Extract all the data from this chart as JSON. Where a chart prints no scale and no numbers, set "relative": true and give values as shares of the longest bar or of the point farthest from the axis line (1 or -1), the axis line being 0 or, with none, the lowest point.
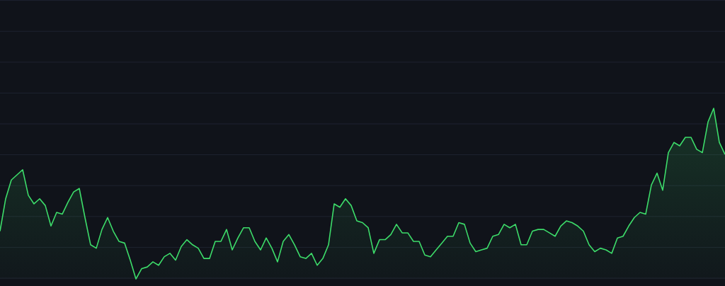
{
  "chart_data": {
    "type": "area",
    "relative": true,
    "grid": true,
    "color": "#3ddc6a",
    "categories": [
      null,
      null,
      null,
      null,
      null,
      null,
      null,
      null,
      null,
      null,
      null,
      null,
      null,
      null,
      null,
      null,
      null,
      null,
      null,
      null,
      null,
      null,
      null,
      null,
      null,
      null,
      null,
      null,
      null,
      null,
      null,
      null,
      null,
      null,
      null,
      null,
      null,
      null,
      null,
      null,
      null,
      null,
      null,
      null,
      null,
      null,
      null,
      null,
      null,
      null,
      null,
      null,
      null,
      null,
      null,
      null,
      null,
      null,
      null,
      null,
      null,
      null,
      null,
      null,
      null,
      null,
      null,
      null,
      null,
      null,
      null,
      null,
      null,
      null,
      null,
      null,
      null,
      null,
      null,
      null,
      null,
      null,
      null,
      null,
      null,
      null,
      null,
      null,
      null,
      null,
      null,
      null,
      null,
      null,
      null,
      null,
      null,
      null,
      null,
      null,
      null,
      null,
      null,
      null,
      null,
      null,
      null,
      null,
      null,
      null,
      null,
      null,
      null,
      null,
      null,
      null,
      null,
      null,
      null,
      null,
      null,
      null,
      null,
      null,
      null,
      null,
      null,
      null,
      null
    ],
    "values": [
      0.28,
      0.47,
      0.58,
      0.61,
      0.64,
      0.49,
      0.44,
      0.47,
      0.43,
      0.31,
      0.39,
      0.38,
      0.45,
      0.51,
      0.53,
      0.36,
      0.2,
      0.18,
      0.29,
      0.36,
      0.28,
      0.22,
      0.21,
      0.11,
      0,
      0.06,
      0.07,
      0.1,
      0.08,
      0.13,
      0.15,
      0.11,
      0.19,
      0.23,
      0.2,
      0.18,
      0.12,
      0.12,
      0.22,
      0.22,
      0.29,
      0.17,
      0.24,
      0.3,
      0.3,
      0.22,
      0.17,
      0.24,
      0.18,
      0.1,
      0.22,
      0.26,
      0.2,
      0.13,
      0.12,
      0.15,
      0.08,
      0.12,
      0.2,
      0.44,
      0.42,
      0.47,
      0.43,
      0.34,
      0.33,
      0.3,
      0.15,
      0.23,
      0.23,
      0.26,
      0.32,
      0.27,
      0.27,
      0.22,
      0.22,
      0.14,
      0.13,
      0.17,
      0.21,
      0.25,
      0.25,
      0.33,
      0.32,
      0.21,
      0.16,
      0.17,
      0.18,
      0.25,
      0.26,
      0.32,
      0.3,
      0.32,
      0.2,
      0.2,
      0.28,
      0.29,
      0.29,
      0.27,
      0.25,
      0.31,
      0.34,
      0.33,
      0.31,
      0.28,
      0.2,
      0.16,
      0.18,
      0.17,
      0.15,
      0.24,
      0.25,
      0.31,
      0.36,
      0.39,
      0.38,
      0.55,
      0.62,
      0.52,
      0.74,
      0.8,
      0.78,
      0.83,
      0.83,
      0.76,
      0.74,
      0.92,
      1,
      0.8,
      0.73
    ]
  }
}
